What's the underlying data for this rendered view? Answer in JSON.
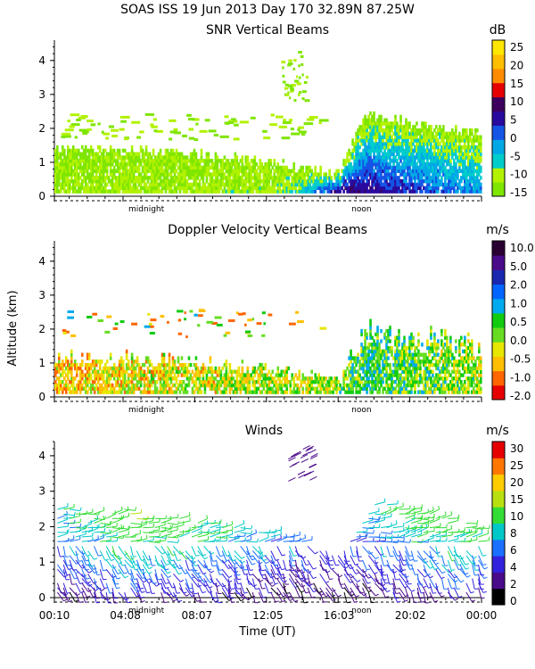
{
  "header": {
    "line1": "SOAS ISS  19 Jun 2013 Day 170 32.89N  87.25W"
  },
  "axes": {
    "y_label": "Altitude (km)",
    "x_label": "Time (UT)",
    "x_tick_labels": [
      "00:10",
      "04:08",
      "08:07",
      "12:05",
      "16:03",
      "20:02",
      "00:00"
    ],
    "y_tick_labels": [
      "0",
      "1",
      "2",
      "3",
      "4"
    ],
    "day_markers": [
      "midnight",
      "noon"
    ]
  },
  "colors": {
    "snr_colorbar": [
      "#7fe600",
      "#b2f200",
      "#00cccc",
      "#00a8e6",
      "#1455e6",
      "#2a0a9e",
      "#3d005c",
      "#e60000",
      "#ff8c00",
      "#ffbf00",
      "#ffe600"
    ],
    "doppler_colorbar": [
      "#e60000",
      "#ff6600",
      "#ffbf00",
      "#e6e600",
      "#66dd22",
      "#11cc11",
      "#00aaee",
      "#0066ff",
      "#1a28b0",
      "#4a0a8a",
      "#2a0033"
    ],
    "wind_colorbar": [
      "#000000",
      "#4a0a8a",
      "#3322dd",
      "#1a70ff",
      "#00c8c8",
      "#33dd33",
      "#b8e010",
      "#ffcc00",
      "#ff7700",
      "#e60000"
    ]
  },
  "chart_data": [
    {
      "type": "heatmap",
      "title": "SNR Vertical Beams",
      "colorbar_unit": "dB",
      "colorbar_ticks": [
        "25",
        "20",
        "15",
        "10",
        "5",
        "0",
        "-5",
        "-10",
        "-15"
      ],
      "colorbar_range": [
        -17,
        29
      ],
      "x": [
        "00:10",
        "04:08",
        "08:07",
        "12:05",
        "16:03",
        "20:02",
        "00:00"
      ],
      "x_range_hours": [
        0.17,
        24.0
      ],
      "ylabel": "",
      "ylim": [
        0,
        4.6
      ],
      "series": [
        {
          "x_hours": [
            0.17,
            4.08,
            8.07,
            12.05,
            14.0,
            16.03,
            17.5,
            20.02,
            24.0
          ],
          "top_km": [
            1.3,
            1.4,
            1.2,
            1.0,
            0.8,
            0.6,
            2.4,
            2.1,
            1.8
          ],
          "core_snr_db": [
            -13,
            -12,
            -12,
            -11,
            -6,
            10,
            8,
            4,
            -2
          ]
        }
      ]
    },
    {
      "type": "heatmap",
      "title": "Doppler Velocity Vertical Beams",
      "colorbar_unit": "m/s",
      "colorbar_ticks": [
        "10.0",
        "5.0",
        "2.0",
        "1.0",
        "0.5",
        "0.0",
        "-0.5",
        "-1.0",
        "-2.0"
      ],
      "x": [
        "00:10",
        "04:08",
        "08:07",
        "12:05",
        "16:03",
        "20:02",
        "00:00"
      ],
      "x_range_hours": [
        0.17,
        24.0
      ],
      "ylabel": "Altitude (km)",
      "ylim": [
        0,
        4.6
      ],
      "series": [
        {
          "x_hours": [
            0.17,
            4.08,
            8.07,
            12.05,
            14.0,
            16.03,
            17.5,
            20.02,
            24.0
          ],
          "top_km": [
            1.3,
            1.4,
            1.2,
            1.0,
            0.8,
            0.6,
            2.4,
            2.1,
            1.8
          ],
          "typical_velocity_ms": [
            -0.8,
            -0.4,
            -0.2,
            0.0,
            0.0,
            0.2,
            0.8,
            0.5,
            0.1
          ]
        }
      ]
    },
    {
      "type": "scatter",
      "title": "Winds",
      "colorbar_unit": "m/s",
      "colorbar_ticks": [
        "30",
        "25",
        "20",
        "15",
        "10",
        "8",
        "6",
        "4",
        "2",
        "0"
      ],
      "x": [
        "00:10",
        "04:08",
        "08:07",
        "12:05",
        "16:03",
        "20:02",
        "00:00"
      ],
      "x_range_hours": [
        0.17,
        24.0
      ],
      "xlabel": "Time (UT)",
      "ylabel": "",
      "ylim": [
        0,
        4.4
      ],
      "series": [
        {
          "x_hours": [
            0.17,
            2.0,
            4.08,
            6.0,
            8.07,
            10.0,
            12.05,
            14.0,
            16.03,
            18.0,
            20.02,
            22.0,
            24.0
          ],
          "top_km": [
            2.6,
            2.4,
            2.5,
            2.3,
            2.2,
            2.0,
            1.9,
            1.6,
            1.2,
            2.7,
            2.5,
            2.3,
            2.0
          ],
          "typical_speed_ms": [
            6,
            7,
            9,
            8,
            7,
            6,
            5,
            4,
            3,
            6,
            7,
            8,
            7
          ]
        }
      ]
    }
  ]
}
